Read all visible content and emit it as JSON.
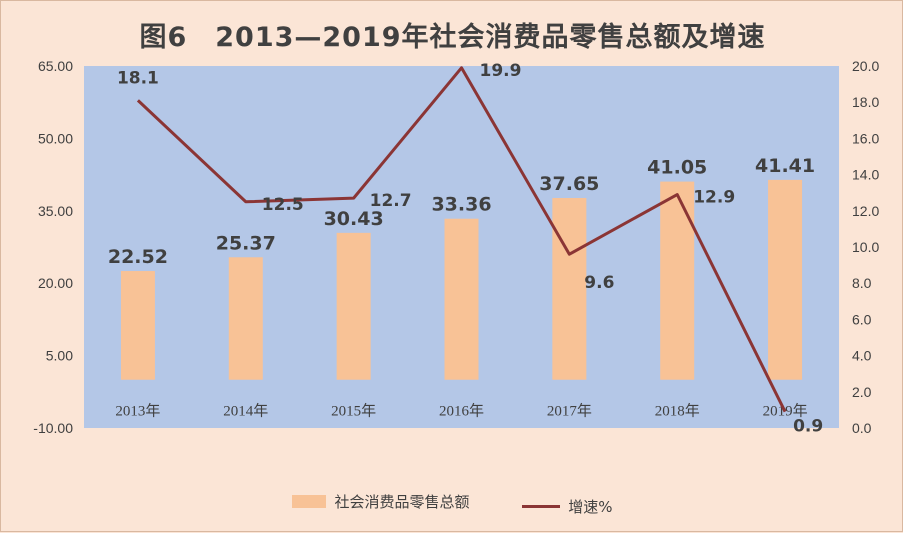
{
  "chart_data": {
    "type": "bar+line",
    "title": "图6　2013—2019年社会消费品零售总额及增速",
    "categories": [
      "2013年",
      "2014年",
      "2015年",
      "2016年",
      "2017年",
      "2018年",
      "2019年"
    ],
    "series": [
      {
        "name": "社会消费品零售总额",
        "type": "bar",
        "axis": "left",
        "values": [
          22.52,
          25.37,
          30.43,
          33.36,
          37.65,
          41.05,
          41.41
        ],
        "labels": [
          "22.52",
          "25.37",
          "30.43",
          "33.36",
          "37.65",
          "41.05",
          "41.41"
        ]
      },
      {
        "name": "增速%",
        "type": "line",
        "axis": "right",
        "values": [
          18.1,
          12.5,
          12.7,
          19.9,
          9.6,
          12.9,
          0.9
        ],
        "labels": [
          "18.1",
          "12.5",
          "12.7",
          "19.9",
          "9.6",
          "12.9",
          "0.9"
        ]
      }
    ],
    "y_left": {
      "min": -10,
      "max": 65,
      "ticks": [
        "65.00",
        "50.00",
        "35.00",
        "20.00",
        "5.00",
        "-10.00"
      ]
    },
    "y_right": {
      "min": 0,
      "max": 20,
      "ticks": [
        "20.0",
        "18.0",
        "16.0",
        "14.0",
        "12.0",
        "10.0",
        "8.0",
        "6.0",
        "4.0",
        "2.0",
        "0.0"
      ]
    },
    "category_axis_value": 0,
    "legend_position": "bottom",
    "grid": false
  },
  "colors": {
    "bar": "#f8c296",
    "line": "#8b3535",
    "plot_bg": "#b4c7e7",
    "page_bg": "#fbe5d6"
  }
}
